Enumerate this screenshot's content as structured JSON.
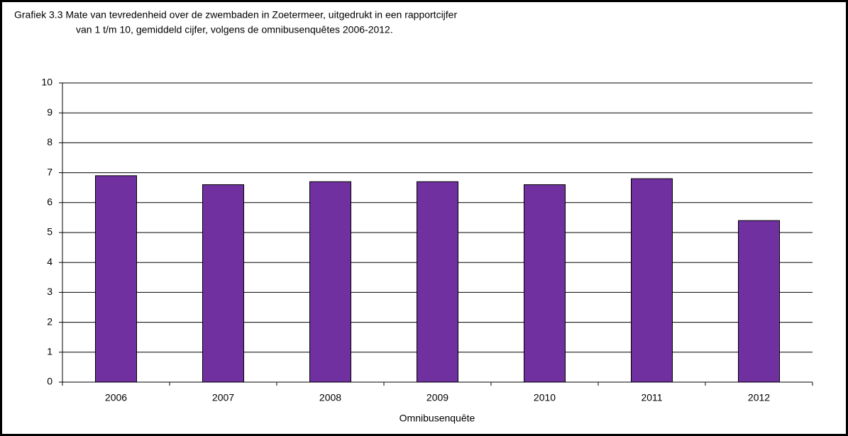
{
  "chart_data": {
    "type": "bar",
    "title": [
      "Grafiek 3.3  Mate van tevredenheid over de zwembaden in Zoetermeer, uitgedrukt in een rapportcijfer",
      "van 1 t/m 10, gemiddeld cijfer, volgens de omnibusenquêtes 2006-2012."
    ],
    "x_label": "Omnibusenquête",
    "categories": [
      "2006",
      "2007",
      "2008",
      "2009",
      "2010",
      "2011",
      "2012"
    ],
    "values": [
      6.9,
      6.6,
      6.7,
      6.7,
      6.6,
      6.8,
      5.4
    ],
    "color": "#7030a0",
    "ylim": [
      0,
      10
    ],
    "yticks": [
      0,
      1,
      2,
      3,
      4,
      5,
      6,
      7,
      8,
      9,
      10
    ],
    "grid": true
  }
}
